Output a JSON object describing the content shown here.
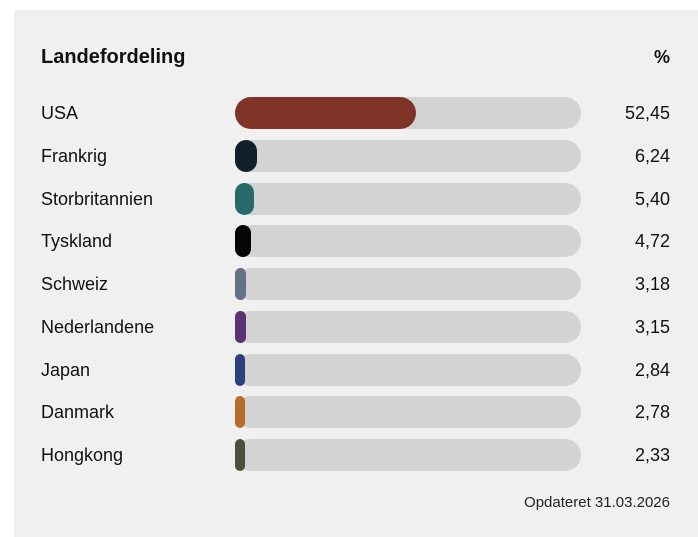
{
  "chart_data": {
    "type": "bar",
    "title": "Landefordeling",
    "unit": "%",
    "categories": [
      "USA",
      "Frankrig",
      "Storbritannien",
      "Tyskland",
      "Schweiz",
      "Nederlandene",
      "Japan",
      "Danmark",
      "Hongkong"
    ],
    "values": [
      52.45,
      6.24,
      5.4,
      4.72,
      3.18,
      3.15,
      2.84,
      2.78,
      2.33
    ],
    "value_labels": [
      "52,45",
      "6,24",
      "5,40",
      "4,72",
      "3,18",
      "3,15",
      "2,84",
      "2,78",
      "2,33"
    ],
    "colors": [
      "#803327",
      "#0f1f2b",
      "#276a6a",
      "#050505",
      "#627484",
      "#5a3372",
      "#2d3f7d",
      "#b86c2a",
      "#4f4d3c"
    ],
    "xlim": [
      0,
      100
    ],
    "orientation": "horizontal",
    "track_color": "#d3d3d3"
  },
  "footer": "Opdateret 31.03.2026"
}
